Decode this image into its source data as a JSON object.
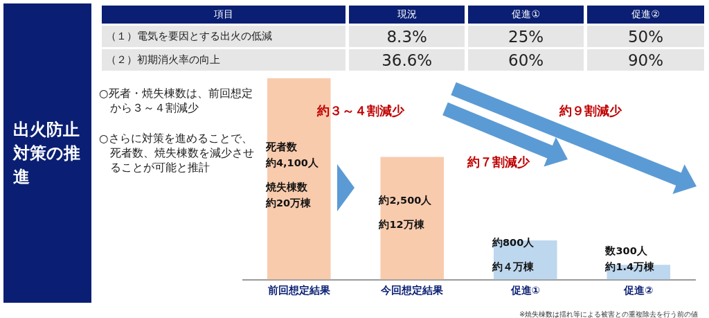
{
  "chart_data": [
    {
      "type": "other",
      "title": "出火防止対策の推進",
      "annotations": [
        "○死者・焼失棟数は、前回想定から３～４割減少",
        "○さらに対策を進めることで、死者数、焼失棟数を減少させることが可能と推計"
      ]
    },
    {
      "type": "other",
      "categories": [
        "項目",
        "現況",
        "促進①",
        "促進②"
      ],
      "y_categories": [
        "（１）電気を要因とする出火の低減",
        "（２）初期消火率の向上"
      ],
      "cell_labels": [
        [
          "8.3%",
          "25%",
          "50%"
        ],
        [
          "36.6%",
          "60%",
          "90%"
        ]
      ]
    },
    {
      "type": "bar",
      "categories": [
        "前回想定結果",
        "今回想定結果",
        "促進①",
        "促進②"
      ],
      "values": [
        4100,
        2500,
        800,
        300
      ],
      "colors": [
        "#f8cbad",
        "#f8cbad",
        "#bdd7ee",
        "#bdd7ee"
      ],
      "value_labels": [
        "約4,100人",
        "約2,500人",
        "約800人",
        "数300人"
      ],
      "annotations": [
        "約３～４割減少",
        "約７割減少",
        "約９割減少",
        "死者数",
        "焼失棟数",
        "約20万棟",
        "約12万棟",
        "約４万棟",
        "約1.4万棟",
        "※焼失棟数は揺れ等による被害との重複除去を行う前の値"
      ]
    }
  ]
}
